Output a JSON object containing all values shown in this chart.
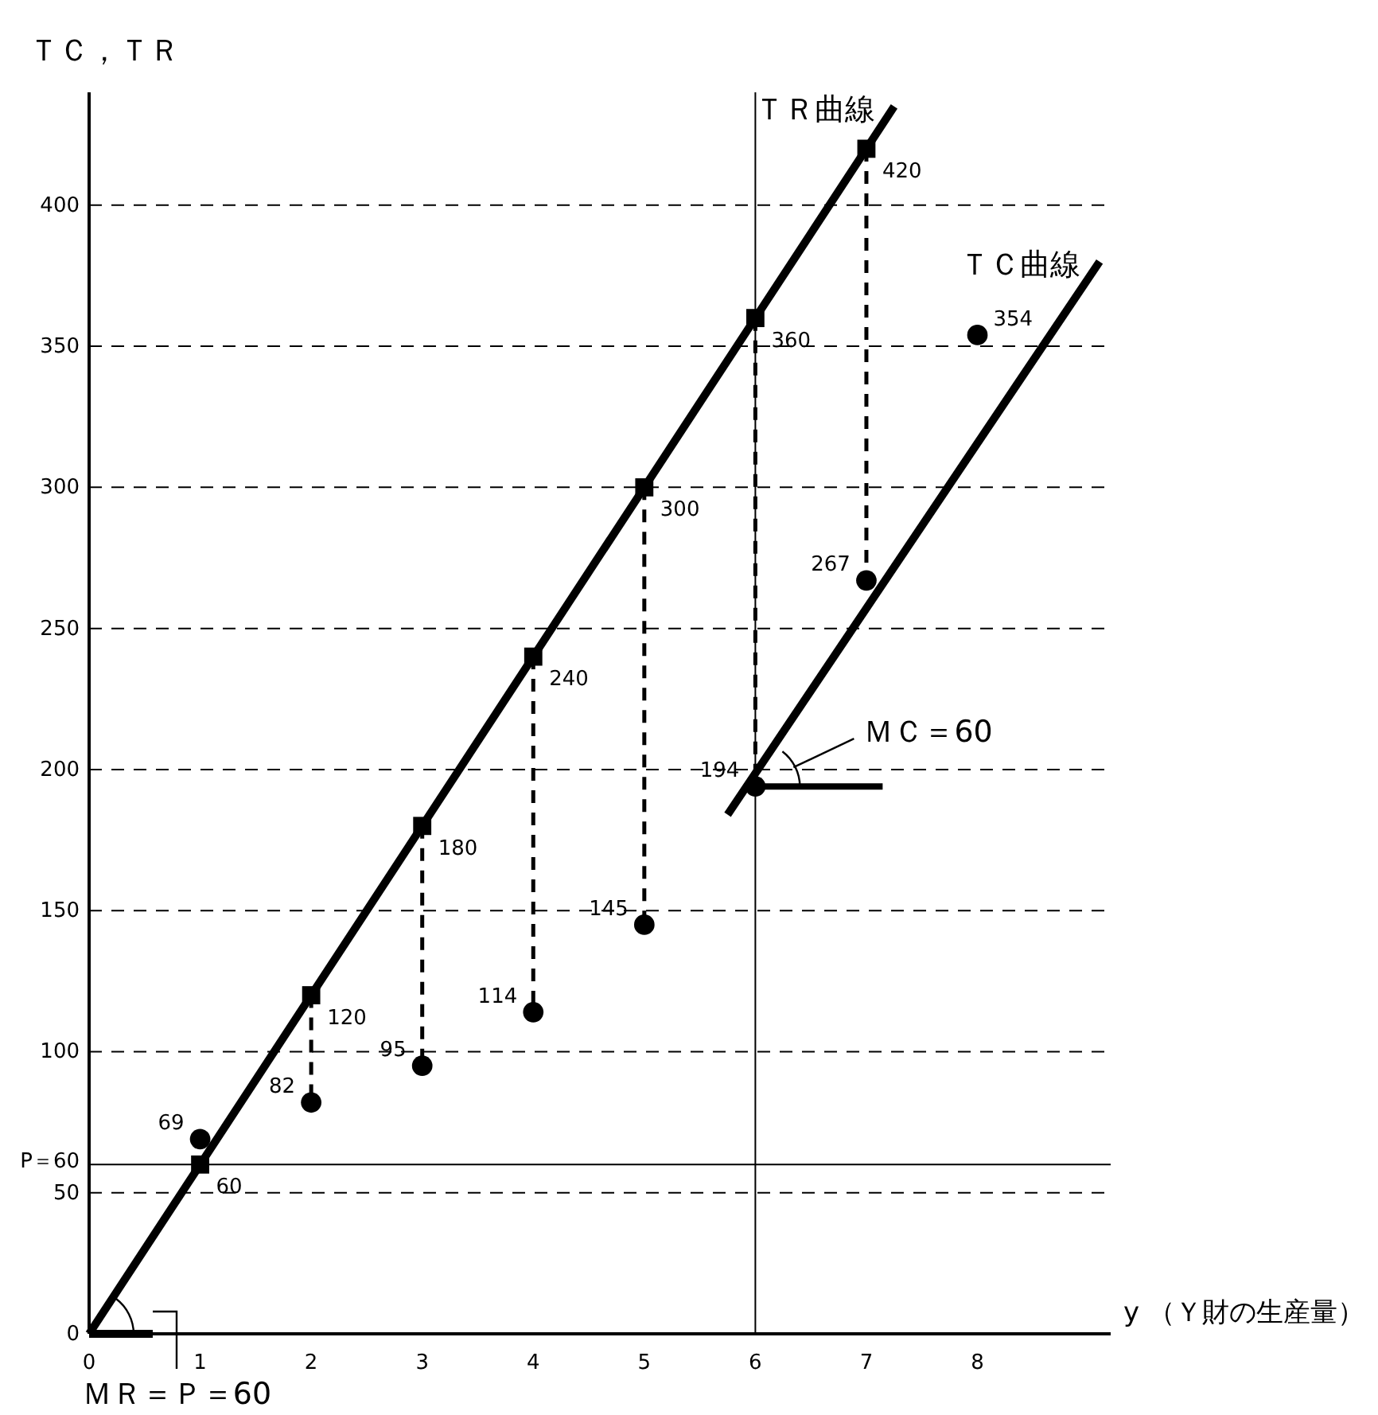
{
  "chart_data": {
    "type": "line",
    "ylabel": "ＴＣ，ＴＲ",
    "xlabel": "y （Ｙ財の生産量）",
    "xlim": [
      0,
      9.2
    ],
    "xticks": [
      0,
      1,
      2,
      3,
      4,
      5,
      6,
      7,
      8
    ],
    "ylim": [
      0,
      440
    ],
    "yticks": [
      0,
      50,
      100,
      150,
      200,
      250,
      300,
      350,
      400
    ],
    "grid": "y",
    "series": [
      {
        "name": "ＴＲ曲線",
        "color": "#000000",
        "marker": "none",
        "x": [
          0,
          7.25
        ],
        "values": [
          0,
          435
        ]
      },
      {
        "type": "scatter",
        "color": "#000000",
        "marker": "square",
        "x": [
          1,
          2,
          3,
          4,
          5,
          6,
          7
        ],
        "values": [
          60,
          120,
          180,
          240,
          300,
          360,
          420
        ],
        "value_labels": [
          "60",
          "120",
          "180",
          "240",
          "300",
          "360",
          "420"
        ]
      },
      {
        "name": "ＴＣ曲線",
        "color": "#000000",
        "marker": "none",
        "x": [
          5.75,
          9.1
        ],
        "values": [
          184,
          380
        ]
      },
      {
        "type": "scatter",
        "color": "#000000",
        "marker": "circle",
        "x": [
          1,
          2,
          3,
          4,
          5,
          6,
          7,
          8
        ],
        "values": [
          69,
          82,
          95,
          114,
          145,
          194,
          267,
          354
        ],
        "value_labels": [
          "69",
          "82",
          "95",
          "114",
          "145",
          "194",
          "267",
          "354"
        ]
      },
      {
        "type": "line",
        "color": "#000000",
        "marker": "none",
        "line_style": "dashed",
        "x": [
          2,
          2
        ],
        "values": [
          120,
          82
        ]
      },
      {
        "type": "line",
        "color": "#000000",
        "marker": "none",
        "line_style": "dashed",
        "x": [
          3,
          3
        ],
        "values": [
          180,
          95
        ]
      },
      {
        "type": "line",
        "color": "#000000",
        "marker": "none",
        "line_style": "dashed",
        "x": [
          4,
          4
        ],
        "values": [
          240,
          114
        ]
      },
      {
        "type": "line",
        "color": "#000000",
        "marker": "none",
        "line_style": "dashed",
        "x": [
          5,
          5
        ],
        "values": [
          300,
          145
        ]
      },
      {
        "type": "line",
        "color": "#000000",
        "marker": "none",
        "line_style": "dashed",
        "x": [
          6,
          6
        ],
        "values": [
          360,
          194
        ]
      },
      {
        "type": "line",
        "color": "#000000",
        "marker": "none",
        "line_style": "dashed",
        "x": [
          7,
          7
        ],
        "values": [
          420,
          267
        ]
      }
    ],
    "ref_lines": [
      {
        "axis": "y",
        "value": 60,
        "label": "P＝60"
      },
      {
        "axis": "x",
        "value": 6
      }
    ],
    "annotations": [
      {
        "text": "ＭＣ＝60",
        "x": 6,
        "y": 194
      },
      {
        "text": "ＭＲ＝Ｐ＝60",
        "x": 0,
        "y": 0
      }
    ]
  }
}
